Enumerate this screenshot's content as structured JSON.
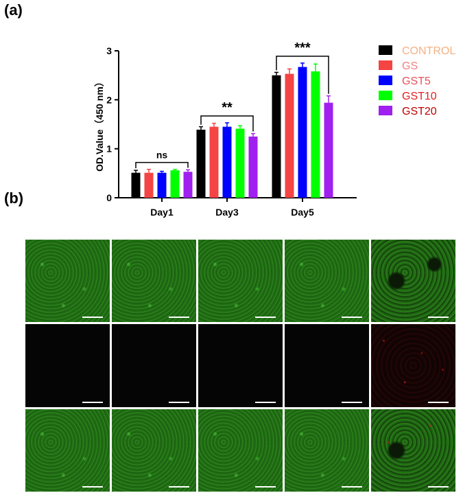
{
  "panels": {
    "a": "(a)",
    "b": "(b)"
  },
  "chart_data": {
    "type": "bar",
    "ylabel": "OD.Value（450 nm）",
    "ylim": [
      0,
      3
    ],
    "yticks": [
      "0",
      "1",
      "2",
      "3"
    ],
    "categories": [
      "Day1",
      "Day3",
      "Day5"
    ],
    "series": [
      {
        "name": "CONTROL",
        "color": "#000000",
        "label_color": "#f4b183",
        "values": [
          0.51,
          1.39,
          2.5
        ],
        "errors": [
          0.05,
          0.06,
          0.06
        ]
      },
      {
        "name": "GS",
        "color": "#f44444",
        "label_color": "#f08080",
        "values": [
          0.51,
          1.45,
          2.53
        ],
        "errors": [
          0.07,
          0.07,
          0.1
        ]
      },
      {
        "name": "GST5",
        "color": "#0000ff",
        "label_color": "#e8505b",
        "values": [
          0.51,
          1.45,
          2.67
        ],
        "errors": [
          0.03,
          0.08,
          0.08
        ]
      },
      {
        "name": "GST10",
        "color": "#00ff00",
        "label_color": "#e02020",
        "values": [
          0.56,
          1.41,
          2.58
        ],
        "errors": [
          0.02,
          0.06,
          0.15
        ]
      },
      {
        "name": "GST20",
        "color": "#a020f0",
        "label_color": "#c00000",
        "values": [
          0.53,
          1.25,
          1.94
        ],
        "errors": [
          0.04,
          0.06,
          0.14
        ]
      }
    ],
    "significance": [
      {
        "group": 0,
        "label": "ns"
      },
      {
        "group": 1,
        "label": "**"
      },
      {
        "group": 2,
        "label": "***"
      }
    ]
  },
  "micrographs": {
    "rows": 3,
    "cols": 5
  }
}
